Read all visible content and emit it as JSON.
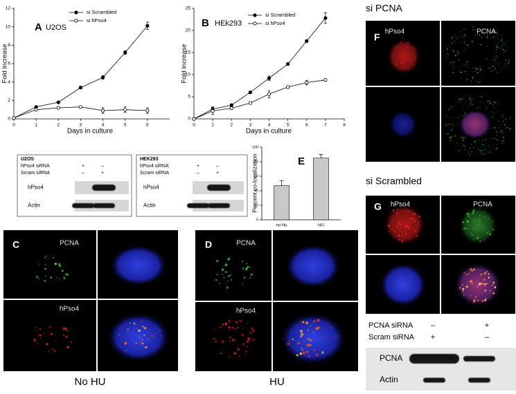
{
  "chart_data": [
    {
      "type": "line",
      "panel": "A",
      "title": "U2OS",
      "xlabel": "Days in culture",
      "ylabel": "Fold increase",
      "x": [
        0,
        1,
        2,
        3,
        4,
        5,
        6
      ],
      "series": [
        {
          "name": "si Scrambled",
          "color": "#000000",
          "marker": "filled",
          "values": [
            0.1,
            1.3,
            1.8,
            3.4,
            4.5,
            7.2,
            10.1
          ],
          "errors": [
            0.05,
            0.1,
            0.1,
            0.15,
            0.2,
            0.2,
            0.4
          ]
        },
        {
          "name": "si hPso4",
          "color": "#000000",
          "marker": "open",
          "values": [
            0.1,
            1.0,
            1.2,
            1.3,
            0.9,
            1.0,
            0.9
          ],
          "errors": [
            0.05,
            0.1,
            0.1,
            0.1,
            0.3,
            0.3,
            0.3
          ]
        }
      ],
      "xlim": [
        0,
        7
      ],
      "xticks": [
        0,
        1,
        2,
        3,
        4,
        5,
        6
      ],
      "ylim": [
        0,
        12
      ],
      "yticks": [
        0,
        2,
        4,
        6,
        8,
        10,
        12
      ]
    },
    {
      "type": "line",
      "panel": "B",
      "title": "HEk293",
      "xlabel": "Days in culture",
      "ylabel": "Fold increase",
      "x": [
        0,
        1,
        2,
        3,
        4,
        5,
        6,
        7
      ],
      "series": [
        {
          "name": "si Scrambled",
          "color": "#000000",
          "marker": "filled",
          "values": [
            0,
            2.2,
            3.1,
            6.0,
            9.2,
            12.4,
            17.6,
            22.8
          ],
          "errors": [
            0.1,
            0.5,
            0.3,
            0.3,
            0.5,
            0.3,
            0.3,
            1.2
          ]
        },
        {
          "name": "si hPso4",
          "color": "#000000",
          "marker": "open",
          "values": [
            0,
            1.8,
            2.4,
            3.6,
            5.6,
            7.2,
            8.2,
            8.8
          ],
          "errors": [
            0.1,
            0.8,
            0.3,
            0.3,
            0.8,
            0.3,
            0.5,
            0.3
          ]
        }
      ],
      "xlim": [
        0,
        8
      ],
      "xticks": [
        0,
        1,
        2,
        3,
        4,
        5,
        6,
        7,
        8
      ],
      "ylim": [
        0,
        25
      ],
      "yticks": [
        0,
        5,
        10,
        15,
        20,
        25
      ]
    },
    {
      "type": "bar",
      "panel": "E",
      "ylabel": "Percent co-localization",
      "categories": [
        "no Hu",
        "HU"
      ],
      "values": [
        47,
        85
      ],
      "errors": [
        7,
        5
      ],
      "color": "#c8c8c8",
      "ylim": [
        0,
        100
      ],
      "yticks": [
        0,
        20,
        40,
        60,
        80,
        100
      ]
    }
  ],
  "blots": [
    {
      "title": "U2OS",
      "conditions": [
        {
          "label": "hPso4 siRNA",
          "lanes": [
            "+",
            "–"
          ]
        },
        {
          "label": "Scram siRNA",
          "lanes": [
            "–",
            "+"
          ]
        }
      ],
      "bands": [
        "hPso4",
        "Actin"
      ]
    },
    {
      "title": "HEK293",
      "conditions": [
        {
          "label": "hPso4 siRNA",
          "lanes": [
            "+",
            "–"
          ]
        },
        {
          "label": "Scram siRNA",
          "lanes": [
            "–",
            "+"
          ]
        }
      ],
      "bands": [
        "hPso4",
        "Actin"
      ]
    },
    {
      "conditions": [
        {
          "label": "PCNA  siRNA",
          "lanes": [
            "–",
            "+"
          ]
        },
        {
          "label": "Scram siRNA",
          "lanes": [
            "+",
            "–"
          ]
        }
      ],
      "bands": [
        "PCNA",
        "Actin"
      ]
    }
  ],
  "micrographs": [
    {
      "panel": "C",
      "channels": [
        "PCNA",
        "hPso4"
      ],
      "caption": "No HU"
    },
    {
      "panel": "D",
      "channels": [
        "PCNA",
        "hPso4"
      ],
      "caption": "HU"
    },
    {
      "heading": "si PCNA",
      "panel": "F",
      "channels": [
        "hPso4",
        "PCNA"
      ]
    },
    {
      "heading": "si Scrambled",
      "panel": "G",
      "channels": [
        "hPso4",
        "PCNA"
      ]
    }
  ]
}
